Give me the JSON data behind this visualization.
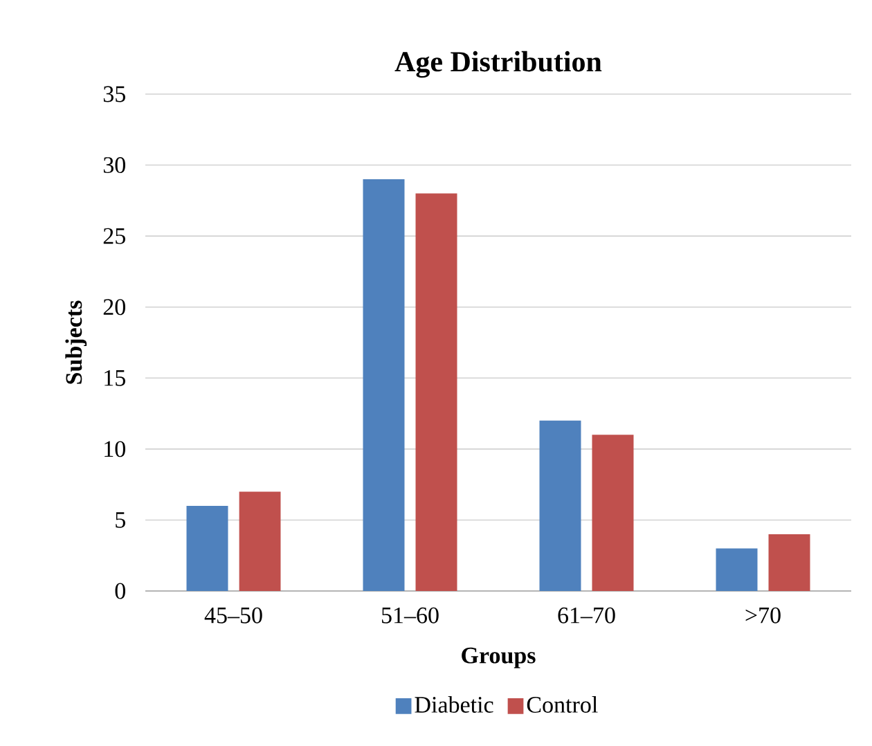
{
  "chart_data": {
    "type": "bar",
    "title": "Age Distribution",
    "xlabel": "Groups",
    "ylabel": "Subjects",
    "categories": [
      "45–50",
      "51–60",
      "61–70",
      ">70"
    ],
    "series": [
      {
        "name": "Diabetic",
        "color": "#4f81bd",
        "values": [
          6,
          29,
          12,
          3
        ]
      },
      {
        "name": "Control",
        "color": "#c0504d",
        "values": [
          7,
          28,
          11,
          4
        ]
      }
    ],
    "ylim": [
      0,
      35
    ],
    "yticks": [
      0,
      5,
      10,
      15,
      20,
      25,
      30,
      35
    ],
    "grid": "y",
    "legend": "bottom"
  }
}
